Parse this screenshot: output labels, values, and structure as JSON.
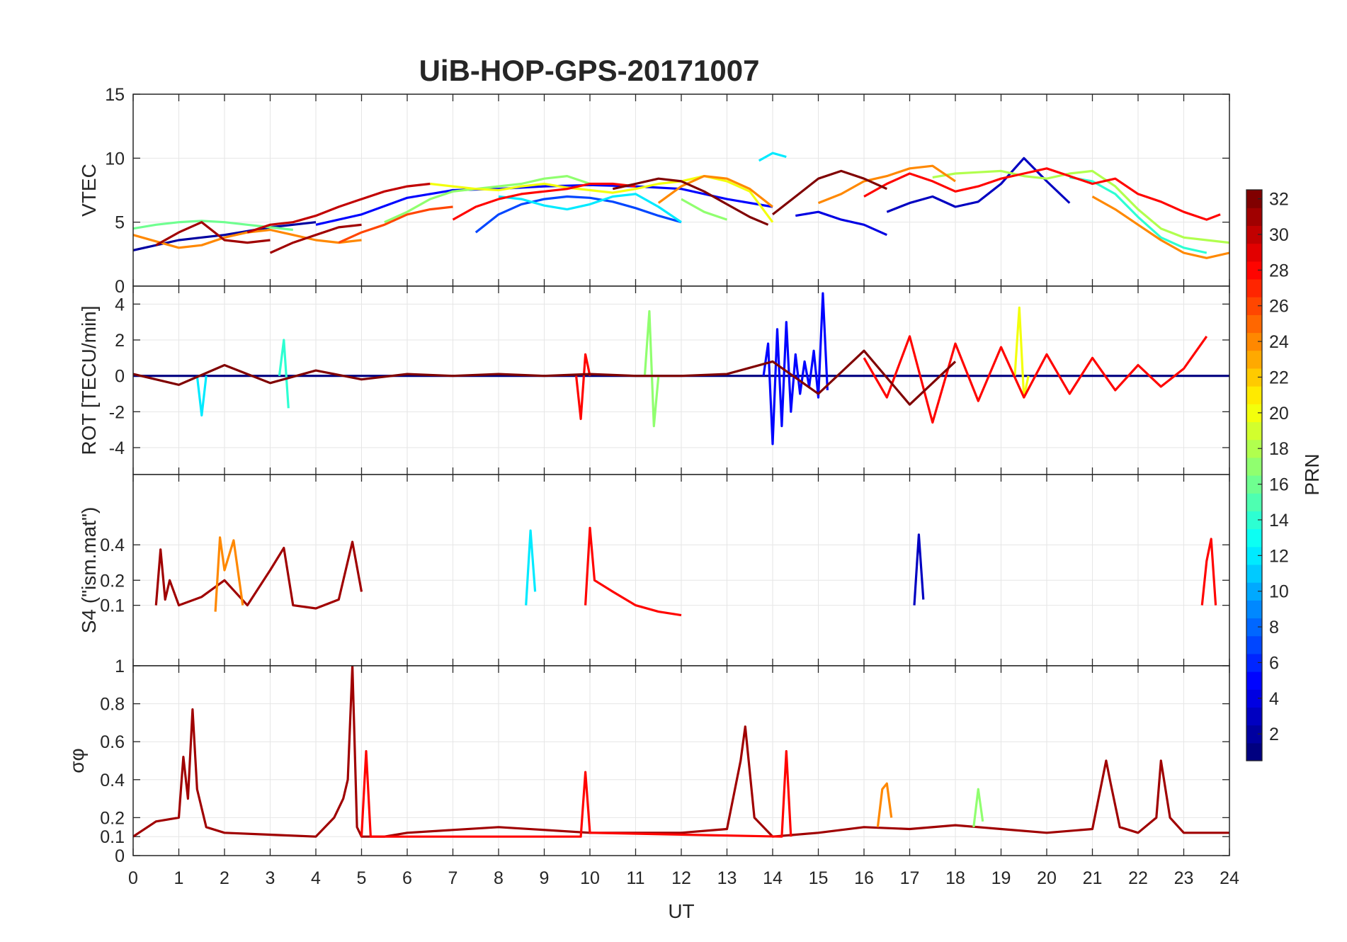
{
  "figure": {
    "title": "UiB-HOP-GPS-20171007",
    "xlabel": "UT",
    "x_ticks": [
      "0",
      "1",
      "2",
      "3",
      "4",
      "5",
      "6",
      "7",
      "8",
      "9",
      "10",
      "11",
      "12",
      "13",
      "14",
      "15",
      "16",
      "17",
      "18",
      "19",
      "20",
      "21",
      "22",
      "23",
      "24"
    ]
  },
  "colorbar": {
    "label": "PRN",
    "min": 1,
    "max": 32,
    "ticks": [
      "2",
      "4",
      "6",
      "8",
      "10",
      "12",
      "14",
      "16",
      "18",
      "20",
      "22",
      "24",
      "26",
      "28",
      "30",
      "32"
    ],
    "colormap": "jet"
  },
  "chart_data": [
    {
      "type": "line",
      "panel": "vtec",
      "ylabel": "VTEC",
      "xlim": [
        0,
        24
      ],
      "ylim": [
        0,
        15
      ],
      "y_ticks": [
        "0",
        "5",
        "10",
        "15"
      ],
      "grid": true,
      "series": [
        {
          "prn": 2,
          "x": [
            0.0,
            0.5,
            1.0,
            1.5,
            2.0,
            2.5,
            3.0,
            3.5,
            4.0
          ],
          "y": [
            2.8,
            3.2,
            3.6,
            3.8,
            4.0,
            4.3,
            4.6,
            4.8,
            5.0
          ]
        },
        {
          "prn": 5,
          "x": [
            4.0,
            5.0,
            6.0,
            7.0,
            8.0,
            9.0,
            10.0,
            11.0,
            12.0,
            13.0,
            14.0
          ],
          "y": [
            4.8,
            5.6,
            6.9,
            7.5,
            7.6,
            7.8,
            7.9,
            7.8,
            7.6,
            6.8,
            6.2
          ]
        },
        {
          "prn": 7,
          "x": [
            7.5,
            8.0,
            8.5,
            9.0,
            9.5,
            10.0,
            10.5,
            11.0,
            11.5,
            12.0
          ],
          "y": [
            4.2,
            5.6,
            6.4,
            6.8,
            7.0,
            6.9,
            6.6,
            6.1,
            5.5,
            5.0
          ]
        },
        {
          "prn": 4,
          "x": [
            14.5,
            15.0,
            15.5,
            16.0,
            16.5
          ],
          "y": [
            5.5,
            5.8,
            5.2,
            4.8,
            4.0
          ]
        },
        {
          "prn": 3,
          "x": [
            16.5,
            17.0,
            17.5,
            18.0,
            18.5,
            19.0,
            19.5,
            20.0,
            20.5
          ],
          "y": [
            5.8,
            6.5,
            7.0,
            6.2,
            6.6,
            8.0,
            10.0,
            8.2,
            6.5
          ]
        },
        {
          "prn": 12,
          "x": [
            13.7,
            14.0,
            14.3
          ],
          "y": [
            9.8,
            10.4,
            10.1
          ]
        },
        {
          "prn": 12,
          "x": [
            8.0,
            8.5,
            9.0,
            9.5,
            10.0,
            10.5,
            11.0,
            11.5,
            12.0
          ],
          "y": [
            7.0,
            6.8,
            6.3,
            6.0,
            6.4,
            7.0,
            7.2,
            6.2,
            5.0
          ]
        },
        {
          "prn": 16,
          "x": [
            0.0,
            0.5,
            1.0,
            1.5,
            2.0,
            2.5,
            3.0,
            3.5
          ],
          "y": [
            4.5,
            4.8,
            5.0,
            5.1,
            5.0,
            4.8,
            4.6,
            4.4
          ]
        },
        {
          "prn": 17,
          "x": [
            5.5,
            6.0,
            6.5,
            7.0,
            7.5,
            8.0,
            8.5,
            9.0,
            9.5,
            10.0
          ],
          "y": [
            5.0,
            5.8,
            6.8,
            7.4,
            7.6,
            7.8,
            8.0,
            8.4,
            8.6,
            8.0
          ]
        },
        {
          "prn": 17,
          "x": [
            12.0,
            12.5,
            13.0
          ],
          "y": [
            6.8,
            5.8,
            5.2
          ]
        },
        {
          "prn": 20,
          "x": [
            6.5,
            7.0,
            7.5,
            8.0,
            8.5,
            9.0,
            9.5,
            10.0,
            10.5,
            11.0,
            11.5,
            12.0,
            12.5,
            13.0,
            13.5,
            14.0
          ],
          "y": [
            8.0,
            7.8,
            7.6,
            7.5,
            7.8,
            8.0,
            7.7,
            7.5,
            7.3,
            7.6,
            8.0,
            8.2,
            8.6,
            8.2,
            7.4,
            5.0
          ]
        },
        {
          "prn": 18,
          "x": [
            17.5,
            18.0,
            18.5,
            19.0,
            19.5,
            20.0,
            20.5,
            21.0,
            21.5,
            22.0,
            22.5,
            23.0,
            23.5,
            24.0
          ],
          "y": [
            8.5,
            8.8,
            8.9,
            9.0,
            8.6,
            8.4,
            8.8,
            9.0,
            7.8,
            6.0,
            4.5,
            3.8,
            3.6,
            3.4
          ]
        },
        {
          "prn": 14,
          "x": [
            20.5,
            21.0,
            21.5,
            22.0,
            22.5,
            23.0,
            23.5
          ],
          "y": [
            8.5,
            8.2,
            7.2,
            5.4,
            3.8,
            3.0,
            2.6
          ]
        },
        {
          "prn": 24,
          "x": [
            0.0,
            0.5,
            1.0,
            1.5,
            2.0,
            2.5,
            3.0,
            3.5,
            4.0,
            4.5,
            5.0
          ],
          "y": [
            4.0,
            3.5,
            3.0,
            3.2,
            3.8,
            4.2,
            4.4,
            4.0,
            3.6,
            3.4,
            3.6
          ]
        },
        {
          "prn": 24,
          "x": [
            11.5,
            12.0,
            12.5,
            13.0,
            13.5,
            14.0
          ],
          "y": [
            6.5,
            7.8,
            8.6,
            8.4,
            7.6,
            6.2
          ]
        },
        {
          "prn": 24,
          "x": [
            15.0,
            15.5,
            16.0,
            16.5,
            17.0,
            17.5,
            18.0
          ],
          "y": [
            6.5,
            7.2,
            8.2,
            8.6,
            9.2,
            9.4,
            8.2
          ]
        },
        {
          "prn": 24,
          "x": [
            21.0,
            21.5,
            22.0,
            22.5,
            23.0,
            23.5,
            24.0
          ],
          "y": [
            7.0,
            6.0,
            4.8,
            3.6,
            2.6,
            2.2,
            2.6
          ]
        },
        {
          "prn": 26,
          "x": [
            4.5,
            5.0,
            5.5,
            6.0,
            6.5,
            7.0
          ],
          "y": [
            3.4,
            4.2,
            4.8,
            5.6,
            6.0,
            6.2
          ]
        },
        {
          "prn": 28,
          "x": [
            7.0,
            7.5,
            8.0,
            8.5,
            9.0,
            9.5,
            10.0,
            10.5,
            11.0
          ],
          "y": [
            5.2,
            6.2,
            6.8,
            7.2,
            7.4,
            7.6,
            8.0,
            8.0,
            7.8
          ]
        },
        {
          "prn": 28,
          "x": [
            16.0,
            16.5,
            17.0,
            17.5,
            18.0,
            18.5,
            19.0,
            19.5,
            20.0,
            20.5,
            21.0,
            21.5,
            22.0,
            22.5,
            23.0,
            23.5,
            23.8
          ],
          "y": [
            7.0,
            8.0,
            8.8,
            8.2,
            7.4,
            7.8,
            8.4,
            8.8,
            9.2,
            8.6,
            8.0,
            8.4,
            7.2,
            6.6,
            5.8,
            5.2,
            5.6
          ]
        },
        {
          "prn": 30,
          "x": [
            2.5,
            3.0,
            3.5,
            4.0,
            4.5,
            5.0,
            5.5,
            6.0,
            6.5
          ],
          "y": [
            4.2,
            4.8,
            5.0,
            5.5,
            6.2,
            6.8,
            7.4,
            7.8,
            8.0
          ]
        },
        {
          "prn": 31,
          "x": [
            0.5,
            1.0,
            1.5,
            2.0,
            2.5,
            3.0
          ],
          "y": [
            3.2,
            4.2,
            5.0,
            3.6,
            3.4,
            3.6
          ]
        },
        {
          "prn": 31,
          "x": [
            3.0,
            3.5,
            4.0,
            4.5,
            5.0
          ],
          "y": [
            2.6,
            3.4,
            4.0,
            4.6,
            4.8
          ]
        },
        {
          "prn": 32,
          "x": [
            10.5,
            11.0,
            11.5,
            12.0,
            12.5,
            13.0,
            13.5,
            13.9
          ],
          "y": [
            7.6,
            8.0,
            8.4,
            8.2,
            7.4,
            6.4,
            5.4,
            4.8
          ]
        },
        {
          "prn": 32,
          "x": [
            14.0,
            14.5,
            15.0,
            15.5,
            16.0,
            16.5
          ],
          "y": [
            5.6,
            7.0,
            8.4,
            9.0,
            8.4,
            7.6
          ]
        }
      ]
    },
    {
      "type": "line",
      "panel": "rot",
      "ylabel": "ROT [TECU/min]",
      "xlim": [
        0,
        24
      ],
      "ylim": [
        -5.5,
        5
      ],
      "y_ticks": [
        "-4",
        "-2",
        "0",
        "2",
        "4"
      ],
      "grid": true,
      "series": [
        {
          "prn": 1,
          "x": [
            0,
            2,
            4,
            6,
            8,
            10,
            12,
            14,
            16,
            18,
            20,
            22,
            24
          ],
          "y": [
            0,
            0,
            0,
            0,
            0,
            0,
            0,
            0,
            0,
            0,
            0,
            0,
            0
          ]
        },
        {
          "prn": 5,
          "x": [
            13.8,
            13.9,
            14.0,
            14.1,
            14.2,
            14.3,
            14.4,
            14.5,
            14.6,
            14.7,
            14.8,
            14.9,
            15.0,
            15.1,
            15.2
          ],
          "y": [
            0,
            1.8,
            -3.8,
            2.6,
            -2.8,
            3.0,
            -2.0,
            1.2,
            -1.0,
            0.8,
            -0.6,
            1.4,
            -1.2,
            4.6,
            -0.8
          ]
        },
        {
          "prn": 17,
          "x": [
            11.2,
            11.3,
            11.4,
            11.5
          ],
          "y": [
            0,
            3.6,
            -2.8,
            0
          ]
        },
        {
          "prn": 20,
          "x": [
            19.3,
            19.4,
            19.5,
            19.6
          ],
          "y": [
            0,
            3.8,
            -1.2,
            0
          ]
        },
        {
          "prn": 12,
          "x": [
            1.4,
            1.5,
            1.6
          ],
          "y": [
            0,
            -2.2,
            0
          ]
        },
        {
          "prn": 14,
          "x": [
            3.2,
            3.3,
            3.4
          ],
          "y": [
            0,
            2.0,
            -1.8
          ]
        },
        {
          "prn": 28,
          "x": [
            9.7,
            9.8,
            9.9,
            10.0
          ],
          "y": [
            0,
            -2.4,
            1.2,
            0
          ]
        },
        {
          "prn": 28,
          "x": [
            16.0,
            16.5,
            17.0,
            17.5,
            18.0,
            18.5,
            19.0,
            19.5,
            20.0,
            20.5,
            21.0,
            21.5,
            22.0,
            22.5,
            23.0,
            23.5
          ],
          "y": [
            1.0,
            -1.2,
            2.2,
            -2.6,
            1.8,
            -1.4,
            1.6,
            -1.2,
            1.2,
            -1.0,
            1.0,
            -0.8,
            0.6,
            -0.6,
            0.4,
            2.2
          ]
        },
        {
          "prn": 32,
          "x": [
            0,
            1,
            2,
            3,
            4,
            5,
            6,
            7,
            8,
            9,
            10,
            11,
            12,
            13,
            14,
            15,
            16,
            17,
            18
          ],
          "y": [
            0.1,
            -0.5,
            0.6,
            -0.4,
            0.3,
            -0.2,
            0.1,
            0,
            0.1,
            0,
            0.1,
            0,
            0,
            0.1,
            0.8,
            -1.0,
            1.4,
            -1.6,
            0.8
          ]
        }
      ]
    },
    {
      "type": "line",
      "panel": "s4",
      "ylabel": "S4 (\"ism.mat\")",
      "xlim": [
        0,
        24
      ],
      "ylim": [
        0,
        1
      ],
      "y_scale": "sqrt",
      "y_ticks": [
        "0.1",
        "0.2",
        "0.4"
      ],
      "grid": true,
      "series": [
        {
          "prn": 31,
          "x": [
            0.5,
            0.6,
            0.7,
            0.8,
            1.0,
            1.5,
            2.0,
            2.5,
            3.0,
            3.3,
            3.5,
            4.0,
            4.5,
            4.8,
            5.0
          ],
          "y": [
            0.1,
            0.37,
            0.12,
            0.2,
            0.1,
            0.13,
            0.2,
            0.1,
            0.25,
            0.38,
            0.1,
            0.09,
            0.12,
            0.42,
            0.15
          ]
        },
        {
          "prn": 28,
          "x": [
            9.9,
            10.0,
            10.1,
            10.5,
            11.0,
            11.5,
            12.0
          ],
          "y": [
            0.1,
            0.52,
            0.2,
            0.15,
            0.1,
            0.08,
            0.07
          ]
        },
        {
          "prn": 3,
          "x": [
            17.1,
            17.2,
            17.3
          ],
          "y": [
            0.1,
            0.47,
            0.12
          ]
        },
        {
          "prn": 12,
          "x": [
            8.6,
            8.7,
            8.8
          ],
          "y": [
            0.1,
            0.5,
            0.15
          ]
        },
        {
          "prn": 24,
          "x": [
            1.8,
            1.9,
            2.0,
            2.2,
            2.4
          ],
          "y": [
            0.08,
            0.45,
            0.25,
            0.43,
            0.1
          ]
        },
        {
          "prn": 28,
          "x": [
            23.4,
            23.5,
            23.6,
            23.7
          ],
          "y": [
            0.1,
            0.3,
            0.44,
            0.1
          ]
        }
      ]
    },
    {
      "type": "line",
      "panel": "sigma_phi",
      "ylabel": "σφ",
      "xlim": [
        0,
        24
      ],
      "ylim": [
        0,
        1
      ],
      "y_ticks": [
        "0",
        "0.1",
        "0.2",
        "0.4",
        "0.6",
        "0.8",
        "1"
      ],
      "grid": true,
      "series": [
        {
          "prn": 31,
          "x": [
            0,
            0.5,
            1.0,
            1.1,
            1.2,
            1.3,
            1.4,
            1.6,
            2.0,
            3.0,
            4.0,
            4.4,
            4.6,
            4.7,
            4.8,
            4.9,
            5.0,
            5.5,
            6.0,
            8.0,
            10.0,
            12.0,
            13.0,
            13.3,
            13.4,
            13.6,
            14.0,
            15.0,
            16.0,
            17.0,
            18.0,
            19.0,
            20.0,
            21.0,
            21.3,
            21.4,
            21.6,
            22.0,
            22.4,
            22.5,
            22.7,
            23.0,
            24.0
          ],
          "y": [
            0.1,
            0.18,
            0.2,
            0.52,
            0.3,
            0.77,
            0.35,
            0.15,
            0.12,
            0.11,
            0.1,
            0.2,
            0.3,
            0.4,
            1.0,
            0.15,
            0.1,
            0.1,
            0.12,
            0.15,
            0.12,
            0.12,
            0.14,
            0.5,
            0.68,
            0.2,
            0.1,
            0.12,
            0.15,
            0.14,
            0.16,
            0.14,
            0.12,
            0.14,
            0.5,
            0.38,
            0.15,
            0.12,
            0.2,
            0.5,
            0.2,
            0.12,
            0.12
          ]
        },
        {
          "prn": 28,
          "x": [
            5.0,
            5.1,
            5.2,
            9.8,
            9.9,
            10.0,
            14.2,
            14.3,
            14.4
          ],
          "y": [
            0.1,
            0.55,
            0.1,
            0.1,
            0.44,
            0.12,
            0.1,
            0.55,
            0.1
          ]
        },
        {
          "prn": 24,
          "x": [
            16.3,
            16.4,
            16.5,
            16.6
          ],
          "y": [
            0.15,
            0.35,
            0.38,
            0.2
          ]
        },
        {
          "prn": 17,
          "x": [
            18.4,
            18.5,
            18.6
          ],
          "y": [
            0.15,
            0.35,
            0.18
          ]
        }
      ]
    }
  ]
}
